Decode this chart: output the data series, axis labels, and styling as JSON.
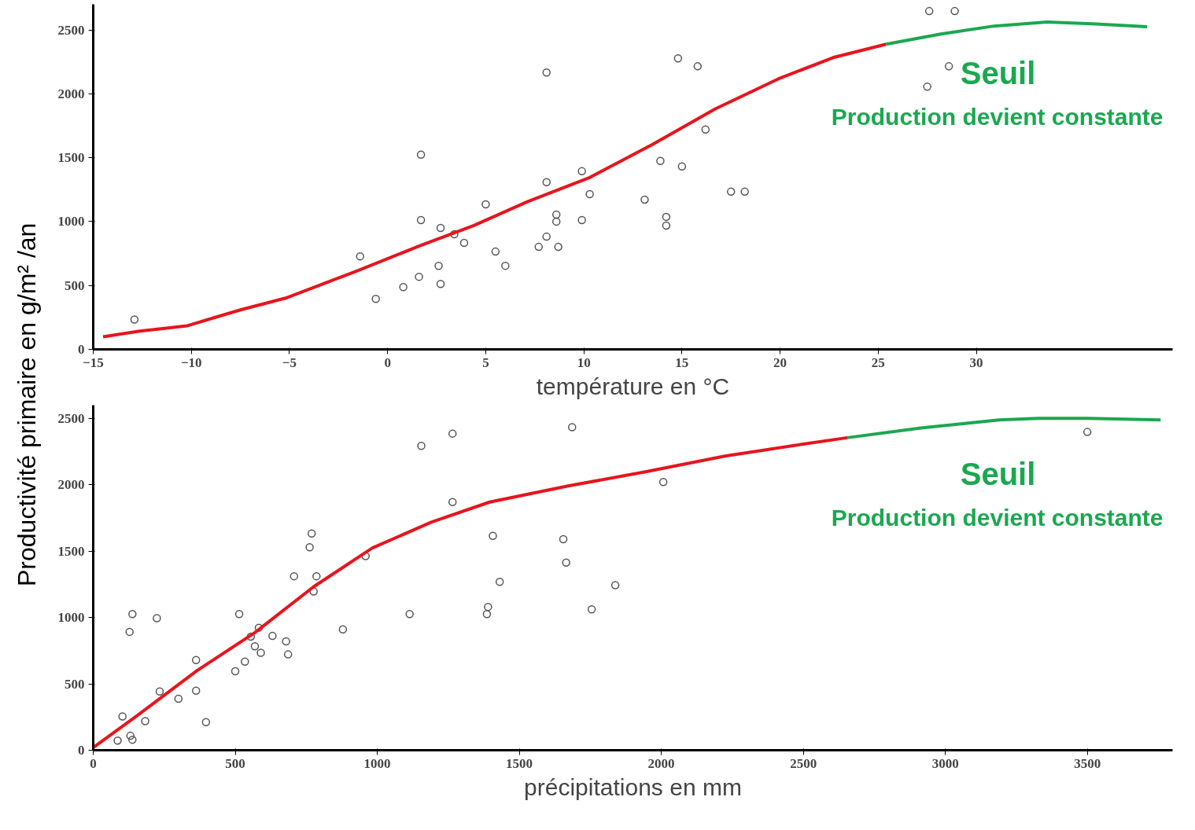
{
  "chart_data": [
    {
      "type": "scatter",
      "xlabel": "température en °C",
      "ylabel": "Productivité primaire en g/m² /an",
      "xlim": [
        -15,
        40
      ],
      "ylim": [
        0,
        2700
      ],
      "xticks": [
        -15,
        -10,
        -5,
        0,
        5,
        10,
        15,
        20,
        25,
        30
      ],
      "yticks": [
        0,
        500,
        1000,
        1500,
        2000,
        2500
      ],
      "grid": false,
      "marker": "circle",
      "annotations": [
        "Seuil",
        "Production devient constante"
      ],
      "series": [
        {
          "color": "#555555",
          "x": [
            -12.9,
            -1.4,
            -0.6,
            0.8,
            1.6,
            1.7,
            1.7,
            2.6,
            2.7,
            2.7,
            3.4,
            3.9,
            5.0,
            5.5,
            6.0,
            7.7,
            8.1,
            8.1,
            8.1,
            8.6,
            8.6,
            8.7,
            9.9,
            9.9,
            10.3,
            13.1,
            13.9,
            14.2,
            14.2,
            14.8,
            15.0,
            15.8,
            16.2,
            17.5,
            18.2,
            27.5,
            27.6,
            28.6,
            28.9
          ],
          "values": [
            234,
            728,
            395,
            487,
            568,
            1012,
            1524,
            654,
            512,
            950,
            901,
            833,
            1135,
            765,
            654,
            802,
            1308,
            882,
            2166,
            1055,
            1000,
            802,
            1394,
            1012,
            1215,
            1172,
            1475,
            1037,
            969,
            2277,
            1431,
            2215,
            1721,
            1234,
            1234,
            2055,
            2647,
            2215,
            2647
          ]
        },
        {
          "type": "line",
          "marker": "none",
          "color": "#e8141c",
          "x": [
            -14.5,
            -12.7,
            -10.2,
            -7.5,
            -5.2,
            -1.5,
            1.7,
            4.4,
            7.1,
            10.3,
            13.5,
            16.7,
            19.9,
            22.7,
            25.4
          ],
          "values": [
            99,
            142,
            185,
            309,
            401,
            617,
            814,
            969,
            1154,
            1345,
            1604,
            1882,
            2116,
            2283,
            2388
          ]
        },
        {
          "type": "line",
          "marker": "none",
          "color": "#1aa84f",
          "x": [
            25.4,
            28.2,
            30.9,
            33.6,
            35.9,
            38.7
          ],
          "values": [
            2388,
            2468,
            2530,
            2561,
            2548,
            2524
          ]
        }
      ]
    },
    {
      "type": "scatter",
      "xlabel": "précipitations en mm",
      "xlim": [
        0,
        3800
      ],
      "ylim": [
        0,
        2600
      ],
      "xticks": [
        0,
        500,
        1000,
        1500,
        2000,
        2500,
        3000,
        3500
      ],
      "yticks": [
        0,
        500,
        1000,
        1500,
        2000,
        2500
      ],
      "grid": false,
      "marker": "circle",
      "annotations": [
        "Seuil",
        "Production devient constante"
      ],
      "series": [
        {
          "color": "#555555",
          "x": [
            86,
            103,
            131,
            138,
            128,
            138,
            183,
            224,
            234,
            300,
            362,
            362,
            397,
            500,
            514,
            534,
            555,
            583,
            569,
            590,
            631,
            679,
            686,
            707,
            762,
            769,
            776,
            786,
            879,
            959,
            1114,
            1155,
            1265,
            1265,
            1386,
            1390,
            1407,
            1431,
            1655,
            1665,
            1686,
            1755,
            1838,
            2007,
            3500
          ],
          "values": [
            73,
            255,
            109,
            79,
            892,
            1026,
            219,
            995,
            443,
            388,
            680,
            449,
            212,
            595,
            1026,
            668,
            856,
            923,
            783,
            734,
            862,
            820,
            722,
            1311,
            1530,
            1633,
            1196,
            1311,
            911,
            1463,
            1026,
            2294,
            1870,
            2386,
            1026,
            1080,
            1615,
            1269,
            1590,
            1414,
            2434,
            1062,
            1244,
            2021,
            2398
          ]
        },
        {
          "type": "line",
          "marker": "none",
          "color": "#e8141c",
          "x": [
            0,
            155,
            362,
            569,
            776,
            983,
            1190,
            1396,
            1672,
            1948,
            2224,
            2500,
            2655
          ],
          "values": [
            20,
            261,
            595,
            886,
            1232,
            1524,
            1718,
            1870,
            1991,
            2100,
            2216,
            2307,
            2355
          ]
        },
        {
          "type": "line",
          "marker": "none",
          "color": "#1aa84f",
          "x": [
            2655,
            2914,
            3190,
            3328,
            3500,
            3758
          ],
          "values": [
            2355,
            2428,
            2489,
            2501,
            2501,
            2489
          ]
        }
      ]
    }
  ]
}
